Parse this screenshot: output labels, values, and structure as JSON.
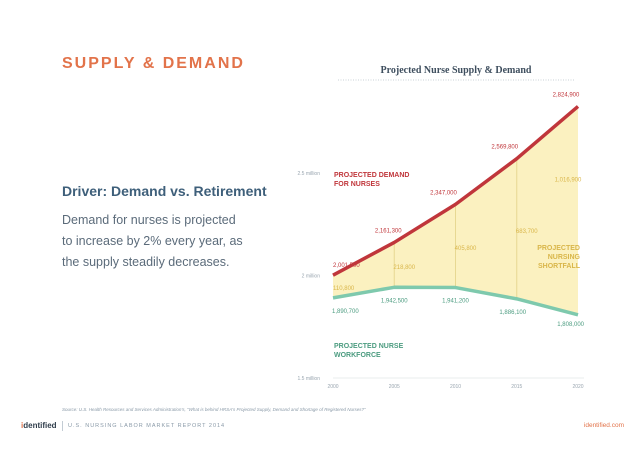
{
  "page": {
    "title": "SUPPLY & DEMAND",
    "subhead": "Driver: Demand vs. Retirement",
    "body_lines": [
      "Demand for nurses is projected",
      "to increase by 2% every year, as",
      "the supply steadily decreases."
    ]
  },
  "footer": {
    "logo_i": "i",
    "logo_rest": "dentified",
    "report": "U.S. NURSING LABOR MARKET REPORT 2014",
    "url": "identified.com",
    "source": "Source: U.S. Health Resources and Services Administration's, \"What is behind HRSA's Projected Supply, Demand and Shortage of Registered Nurses?\""
  },
  "colors": {
    "accent": "#e2734a",
    "demand": "#c0363b",
    "supply": "#7ec9ad",
    "shortfall_fill": "#fbf1c0",
    "gap_label": "#d9b64a",
    "divider": "#e7d892",
    "heading": "#3e5f7a"
  },
  "chart_data": {
    "type": "line",
    "title": "Projected Nurse Supply & Demand",
    "x": [
      2000,
      2005,
      2010,
      2015,
      2020
    ],
    "x_tick_labels": [
      "2000",
      "2005",
      "2010",
      "2015",
      "2020"
    ],
    "ylim": [
      1500000,
      2900000
    ],
    "y_ticks": [
      1500000,
      2000000,
      2500000
    ],
    "y_tick_labels": [
      "1.5 million",
      "2 million",
      "2.5 million"
    ],
    "series": [
      {
        "name": "demand",
        "label_lines": [
          "PROJECTED DEMAND",
          "FOR NURSES"
        ],
        "values": [
          2001500,
          2161300,
          2347000,
          2569800,
          2824900
        ],
        "value_labels": [
          "2,001,500",
          "2,161,300",
          "2,347,000",
          "2,569,800",
          "2,824,900"
        ]
      },
      {
        "name": "supply",
        "label_lines": [
          "PROJECTED NURSE",
          "WORKFORCE"
        ],
        "values": [
          1890700,
          1942500,
          1941200,
          1886100,
          1808000
        ],
        "value_labels": [
          "1,890,700",
          "1,942,500",
          "1,941,200",
          "1,886,100",
          "1,808,000"
        ]
      }
    ],
    "gap": {
      "label_lines": [
        "PROJECTED",
        "NURSING",
        "SHORTFALL"
      ],
      "values": [
        110800,
        218800,
        405800,
        683700,
        1016900
      ],
      "value_labels": [
        "110,800",
        "218,800",
        "405,800",
        "683,700",
        "1,016,900"
      ]
    }
  }
}
